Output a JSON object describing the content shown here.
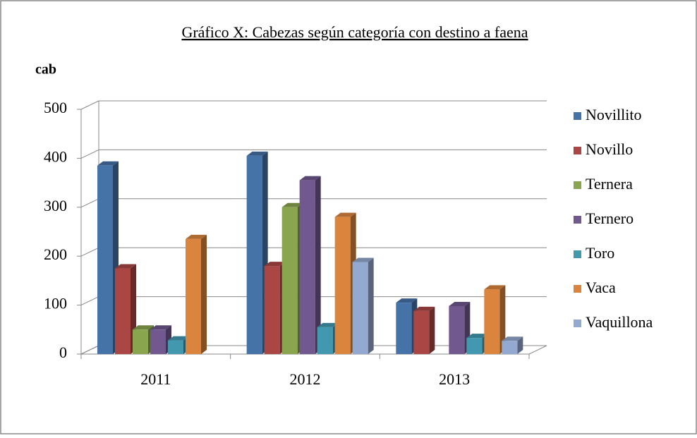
{
  "chart_data": {
    "type": "bar",
    "title": "Gráfico X: Cabezas según categoría con destino a faena",
    "y_label": "cab",
    "categories": [
      "2011",
      "2012",
      "2013"
    ],
    "series": [
      {
        "name": "Novillito",
        "color": "#4572a7",
        "values": [
          385,
          405,
          105
        ]
      },
      {
        "name": "Novillo",
        "color": "#aa4643",
        "values": [
          175,
          180,
          88
        ]
      },
      {
        "name": "Ternera",
        "color": "#89a54e",
        "values": [
          50,
          300,
          null
        ]
      },
      {
        "name": "Ternero",
        "color": "#71588f",
        "values": [
          50,
          355,
          98
        ]
      },
      {
        "name": "Toro",
        "color": "#4198af",
        "values": [
          28,
          55,
          33
        ]
      },
      {
        "name": "Vaca",
        "color": "#db843d",
        "values": [
          235,
          280,
          132
        ]
      },
      {
        "name": "Vaquillona",
        "color": "#93a9cf",
        "values": [
          null,
          188,
          27
        ]
      }
    ],
    "ylim": [
      0,
      500
    ],
    "yticks": [
      0,
      100,
      200,
      300,
      400,
      500
    ],
    "grid": true,
    "legend": "right"
  }
}
